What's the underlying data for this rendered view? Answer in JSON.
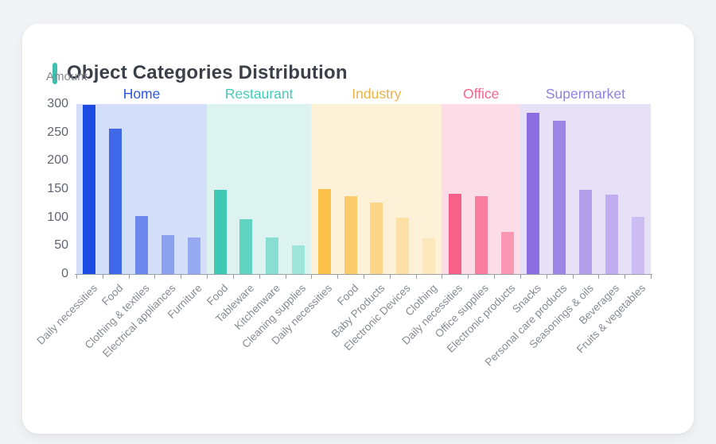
{
  "header": {
    "title": "Object Categories Distribution",
    "accent_color": "#3fc0ae"
  },
  "chart_data": {
    "type": "bar",
    "title": "Object Categories Distribution",
    "xlabel": "",
    "ylabel": "Amount",
    "ylim": [
      0,
      300
    ],
    "yticks": [
      0,
      50,
      100,
      150,
      200,
      250,
      300
    ],
    "grid": false,
    "legend_position": "none",
    "axis_color": "#9aa0a8",
    "ytick_label_color": "#5f6470",
    "xtick_label_color": "#858a93",
    "groups": [
      {
        "name": "Home",
        "label_color": "#2e55e6",
        "band_color": "#d3def8",
        "categories": [
          "Daily necessities",
          "Food",
          "Clothing & textiles",
          "Electrical appliances",
          "Furniture"
        ],
        "values": [
          298,
          257,
          102,
          69,
          64
        ],
        "bar_colors": [
          "#1d4ce4",
          "#3f69e8",
          "#6c88ec",
          "#8ba0ef",
          "#97a9f1"
        ]
      },
      {
        "name": "Restaurant",
        "label_color": "#45cbb8",
        "band_color": "#dcf3f0",
        "categories": [
          "Food",
          "Tableware",
          "Kitchenware",
          "Cleaning supplies"
        ],
        "values": [
          148,
          97,
          65,
          51
        ],
        "bar_colors": [
          "#3ec9b4",
          "#60d3c3",
          "#87dfd3",
          "#9de5db"
        ]
      },
      {
        "name": "Industry",
        "label_color": "#eab347",
        "band_color": "#fdf2d8",
        "categories": [
          "Daily necessities",
          "Food",
          "Baby Products",
          "Electronic Devices",
          "Clothing"
        ],
        "values": [
          150,
          138,
          126,
          99,
          63
        ],
        "bar_colors": [
          "#fbc24b",
          "#fbcc6c",
          "#fcd588",
          "#fde0a6",
          "#fde8bd"
        ]
      },
      {
        "name": "Office",
        "label_color": "#f9638c",
        "band_color": "#fcdde7",
        "categories": [
          "Daily necessities",
          "Office supplies",
          "Electronic products"
        ],
        "values": [
          142,
          138,
          75
        ],
        "bar_colors": [
          "#f96089",
          "#f97d9e",
          "#fa97b3"
        ]
      },
      {
        "name": "Supermarket",
        "label_color": "#9181dd",
        "band_color": "#e7e1f8",
        "categories": [
          "Snacks",
          "Personal care products",
          "Seasonings & oils",
          "Beverages",
          "Fruits & vegetables"
        ],
        "values": [
          284,
          271,
          148,
          140,
          101
        ],
        "bar_colors": [
          "#8b6edf",
          "#9c84e4",
          "#b39eeb",
          "#bfadef",
          "#ccbdf2"
        ]
      }
    ]
  }
}
